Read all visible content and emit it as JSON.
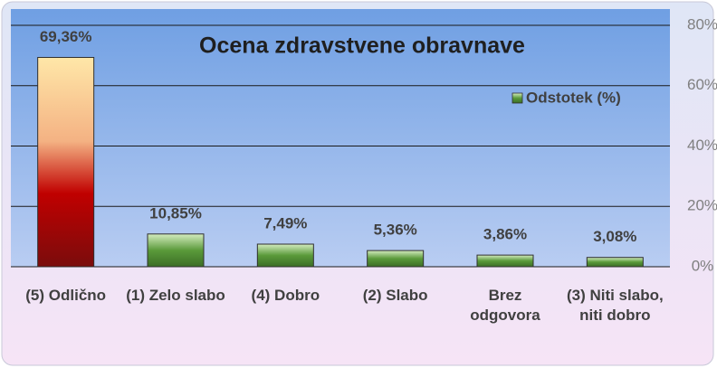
{
  "chart_data": {
    "type": "bar",
    "title": "Ocena zdravstvene obravnave",
    "categories": [
      "(5) Odlično",
      "(1) Zelo slabo",
      "(4) Dobro",
      "(2) Slabo",
      "Brez odgovora",
      "(3) Niti slabo, niti dobro"
    ],
    "series": [
      {
        "name": "Odstotek (%)",
        "color": "#5a9a3a",
        "values": [
          69.36,
          10.85,
          7.49,
          5.36,
          3.86,
          3.08
        ],
        "value_labels": [
          "69,36%",
          "10,85%",
          "7,49%",
          "5,36%",
          "3,86%",
          "3,08%"
        ]
      }
    ],
    "highlight_color": "#c00000",
    "ylim": [
      0,
      80
    ],
    "yticks": [
      {
        "value": 0,
        "label": "0%"
      },
      {
        "value": 20,
        "label": "20%"
      },
      {
        "value": 40,
        "label": "40%"
      },
      {
        "value": 60,
        "label": "60%"
      },
      {
        "value": 80,
        "label": "80%"
      }
    ],
    "grid": true,
    "legend": "top-right"
  }
}
